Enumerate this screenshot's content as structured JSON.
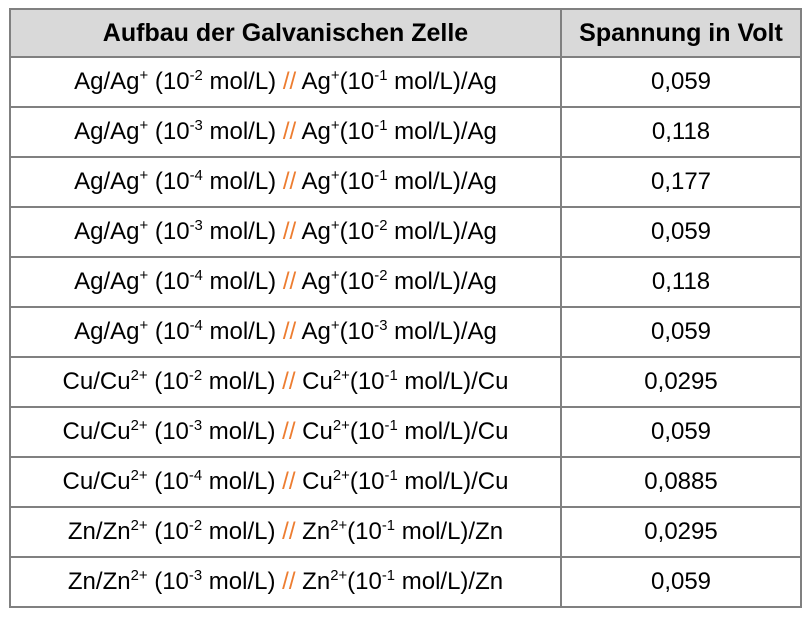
{
  "colors": {
    "separator_slash": "#ED7D31",
    "header_background": "#D9D9D9",
    "border": "#808080",
    "text": "#000000",
    "page_background": "#FFFFFF"
  },
  "table": {
    "headers": [
      {
        "label": "Aufbau der Galvanischen Zelle"
      },
      {
        "label": "Spannung in Volt"
      }
    ],
    "rows": [
      {
        "voltage": "0,059",
        "parts": [
          {
            "t": "Ag/Ag"
          },
          {
            "t": "+",
            "sup": true
          },
          {
            "t": " (10"
          },
          {
            "t": "-2",
            "sup": true
          },
          {
            "t": " mol/L) "
          },
          {
            "t": "//",
            "orange": true
          },
          {
            "t": " Ag"
          },
          {
            "t": "+",
            "sup": true
          },
          {
            "t": "(10"
          },
          {
            "t": "-1",
            "sup": true
          },
          {
            "t": " mol/L)/Ag"
          }
        ]
      },
      {
        "voltage": "0,118",
        "parts": [
          {
            "t": "Ag/Ag"
          },
          {
            "t": "+",
            "sup": true
          },
          {
            "t": " (10"
          },
          {
            "t": "-3",
            "sup": true
          },
          {
            "t": " mol/L) "
          },
          {
            "t": "//",
            "orange": true
          },
          {
            "t": " Ag"
          },
          {
            "t": "+",
            "sup": true
          },
          {
            "t": "(10"
          },
          {
            "t": "-1",
            "sup": true
          },
          {
            "t": " mol/L)/Ag"
          }
        ]
      },
      {
        "voltage": "0,177",
        "parts": [
          {
            "t": "Ag/Ag"
          },
          {
            "t": "+",
            "sup": true
          },
          {
            "t": " (10"
          },
          {
            "t": "-4",
            "sup": true
          },
          {
            "t": " mol/L) "
          },
          {
            "t": "//",
            "orange": true
          },
          {
            "t": " Ag"
          },
          {
            "t": "+",
            "sup": true
          },
          {
            "t": "(10"
          },
          {
            "t": "-1",
            "sup": true
          },
          {
            "t": " mol/L)/Ag"
          }
        ]
      },
      {
        "voltage": "0,059",
        "parts": [
          {
            "t": "Ag/Ag"
          },
          {
            "t": "+",
            "sup": true
          },
          {
            "t": " (10"
          },
          {
            "t": "-3",
            "sup": true
          },
          {
            "t": " mol/L) "
          },
          {
            "t": "//",
            "orange": true
          },
          {
            "t": " Ag"
          },
          {
            "t": "+",
            "sup": true
          },
          {
            "t": "(10"
          },
          {
            "t": "-2",
            "sup": true
          },
          {
            "t": " mol/L)/Ag"
          }
        ]
      },
      {
        "voltage": "0,118",
        "parts": [
          {
            "t": "Ag/Ag"
          },
          {
            "t": "+",
            "sup": true
          },
          {
            "t": " (10"
          },
          {
            "t": "-4",
            "sup": true
          },
          {
            "t": " mol/L) "
          },
          {
            "t": "//",
            "orange": true
          },
          {
            "t": " Ag"
          },
          {
            "t": "+",
            "sup": true
          },
          {
            "t": "(10"
          },
          {
            "t": "-2",
            "sup": true
          },
          {
            "t": " mol/L)/Ag"
          }
        ]
      },
      {
        "voltage": "0,059",
        "parts": [
          {
            "t": "Ag/Ag"
          },
          {
            "t": "+",
            "sup": true
          },
          {
            "t": " (10"
          },
          {
            "t": "-4",
            "sup": true
          },
          {
            "t": " mol/L) "
          },
          {
            "t": "//",
            "orange": true
          },
          {
            "t": " Ag"
          },
          {
            "t": "+",
            "sup": true
          },
          {
            "t": "(10"
          },
          {
            "t": "-3",
            "sup": true
          },
          {
            "t": " mol/L)/Ag"
          }
        ]
      },
      {
        "voltage": "0,0295",
        "parts": [
          {
            "t": "Cu/Cu"
          },
          {
            "t": "2+",
            "sup": true
          },
          {
            "t": " (10"
          },
          {
            "t": "-2",
            "sup": true
          },
          {
            "t": " mol/L) "
          },
          {
            "t": "//",
            "orange": true
          },
          {
            "t": " Cu"
          },
          {
            "t": "2+",
            "sup": true
          },
          {
            "t": "(10"
          },
          {
            "t": "-1",
            "sup": true
          },
          {
            "t": " mol/L)/Cu"
          }
        ]
      },
      {
        "voltage": "0,059",
        "parts": [
          {
            "t": "Cu/Cu"
          },
          {
            "t": "2+",
            "sup": true
          },
          {
            "t": " (10"
          },
          {
            "t": "-3",
            "sup": true
          },
          {
            "t": " mol/L) "
          },
          {
            "t": "//",
            "orange": true
          },
          {
            "t": " Cu"
          },
          {
            "t": "2+",
            "sup": true
          },
          {
            "t": "(10"
          },
          {
            "t": "-1",
            "sup": true
          },
          {
            "t": " mol/L)/Cu"
          }
        ]
      },
      {
        "voltage": "0,0885",
        "parts": [
          {
            "t": "Cu/Cu"
          },
          {
            "t": "2+",
            "sup": true
          },
          {
            "t": " (10"
          },
          {
            "t": "-4",
            "sup": true
          },
          {
            "t": " mol/L) "
          },
          {
            "t": "//",
            "orange": true
          },
          {
            "t": " Cu"
          },
          {
            "t": "2+",
            "sup": true
          },
          {
            "t": "(10"
          },
          {
            "t": "-1",
            "sup": true
          },
          {
            "t": " mol/L)/Cu"
          }
        ]
      },
      {
        "voltage": "0,0295",
        "parts": [
          {
            "t": "Zn/Zn"
          },
          {
            "t": "2+",
            "sup": true
          },
          {
            "t": " (10"
          },
          {
            "t": "-2",
            "sup": true
          },
          {
            "t": " mol/L) "
          },
          {
            "t": "//",
            "orange": true
          },
          {
            "t": " Zn"
          },
          {
            "t": "2+",
            "sup": true
          },
          {
            "t": "(10"
          },
          {
            "t": "-1",
            "sup": true
          },
          {
            "t": " mol/L)/Zn"
          }
        ]
      },
      {
        "voltage": "0,059",
        "parts": [
          {
            "t": "Zn/Zn"
          },
          {
            "t": "2+",
            "sup": true
          },
          {
            "t": " (10"
          },
          {
            "t": "-3",
            "sup": true
          },
          {
            "t": " mol/L) "
          },
          {
            "t": "//",
            "orange": true
          },
          {
            "t": " Zn"
          },
          {
            "t": "2+",
            "sup": true
          },
          {
            "t": "(10"
          },
          {
            "t": "-1",
            "sup": true
          },
          {
            "t": " mol/L)/Zn"
          }
        ]
      }
    ]
  }
}
